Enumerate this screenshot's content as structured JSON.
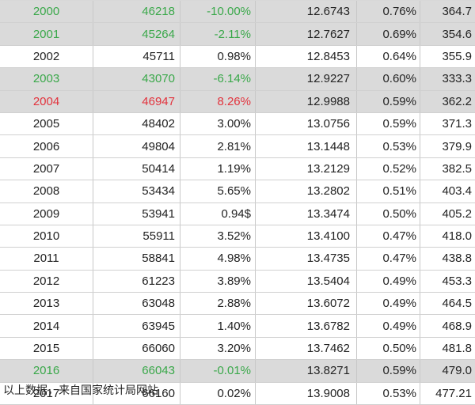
{
  "rows": [
    {
      "year": "2000",
      "population": "46218",
      "growth": "-10.00%",
      "total": "12.6743",
      "rate": "0.76%",
      "per_capita": "364.7",
      "highlight": "green"
    },
    {
      "year": "2001",
      "population": "45264",
      "growth": "-2.11%",
      "total": "12.7627",
      "rate": "0.69%",
      "per_capita": "354.6",
      "highlight": "green"
    },
    {
      "year": "2002",
      "population": "45711",
      "growth": "0.98%",
      "total": "12.8453",
      "rate": "0.64%",
      "per_capita": "355.9",
      "highlight": "none"
    },
    {
      "year": "2003",
      "population": "43070",
      "growth": "-6.14%",
      "total": "12.9227",
      "rate": "0.60%",
      "per_capita": "333.3",
      "highlight": "green"
    },
    {
      "year": "2004",
      "population": "46947",
      "growth": "8.26%",
      "total": "12.9988",
      "rate": "0.59%",
      "per_capita": "362.2",
      "highlight": "red"
    },
    {
      "year": "2005",
      "population": "48402",
      "growth": "3.00%",
      "total": "13.0756",
      "rate": "0.59%",
      "per_capita": "371.3",
      "highlight": "none"
    },
    {
      "year": "2006",
      "population": "49804",
      "growth": "2.81%",
      "total": "13.1448",
      "rate": "0.53%",
      "per_capita": "379.9",
      "highlight": "none"
    },
    {
      "year": "2007",
      "population": "50414",
      "growth": "1.19%",
      "total": "13.2129",
      "rate": "0.52%",
      "per_capita": "382.5",
      "highlight": "none"
    },
    {
      "year": "2008",
      "population": "53434",
      "growth": "5.65%",
      "total": "13.2802",
      "rate": "0.51%",
      "per_capita": "403.4",
      "highlight": "none"
    },
    {
      "year": "2009",
      "population": "53941",
      "growth": "0.94$",
      "total": "13.3474",
      "rate": "0.50%",
      "per_capita": "405.2",
      "highlight": "none"
    },
    {
      "year": "2010",
      "population": "55911",
      "growth": "3.52%",
      "total": "13.4100",
      "rate": "0.47%",
      "per_capita": "418.0",
      "highlight": "none"
    },
    {
      "year": "2011",
      "population": "58841",
      "growth": "4.98%",
      "total": "13.4735",
      "rate": "0.47%",
      "per_capita": "438.8",
      "highlight": "none"
    },
    {
      "year": "2012",
      "population": "61223",
      "growth": "3.89%",
      "total": "13.5404",
      "rate": "0.49%",
      "per_capita": "453.3",
      "highlight": "none"
    },
    {
      "year": "2013",
      "population": "63048",
      "growth": "2.88%",
      "total": "13.6072",
      "rate": "0.49%",
      "per_capita": "464.5",
      "highlight": "none"
    },
    {
      "year": "2014",
      "population": "63945",
      "growth": "1.40%",
      "total": "13.6782",
      "rate": "0.49%",
      "per_capita": "468.9",
      "highlight": "none"
    },
    {
      "year": "2015",
      "population": "66060",
      "growth": "3.20%",
      "total": "13.7462",
      "rate": "0.50%",
      "per_capita": "481.8",
      "highlight": "none"
    },
    {
      "year": "2016",
      "population": "66043",
      "growth": "-0.01%",
      "total": "13.8271",
      "rate": "0.59%",
      "per_capita": "479.0",
      "highlight": "green"
    },
    {
      "year": "2017",
      "population": "66160",
      "growth": "0.02%",
      "total": "13.9008",
      "rate": "0.53%",
      "per_capita": "477.21",
      "highlight": "none"
    }
  ],
  "footer": {
    "note": "以上数据，来自国家统计局网站"
  },
  "colors": {
    "green": "#3aa84a",
    "red": "#e2333d",
    "shaded_row": "#dadada"
  }
}
